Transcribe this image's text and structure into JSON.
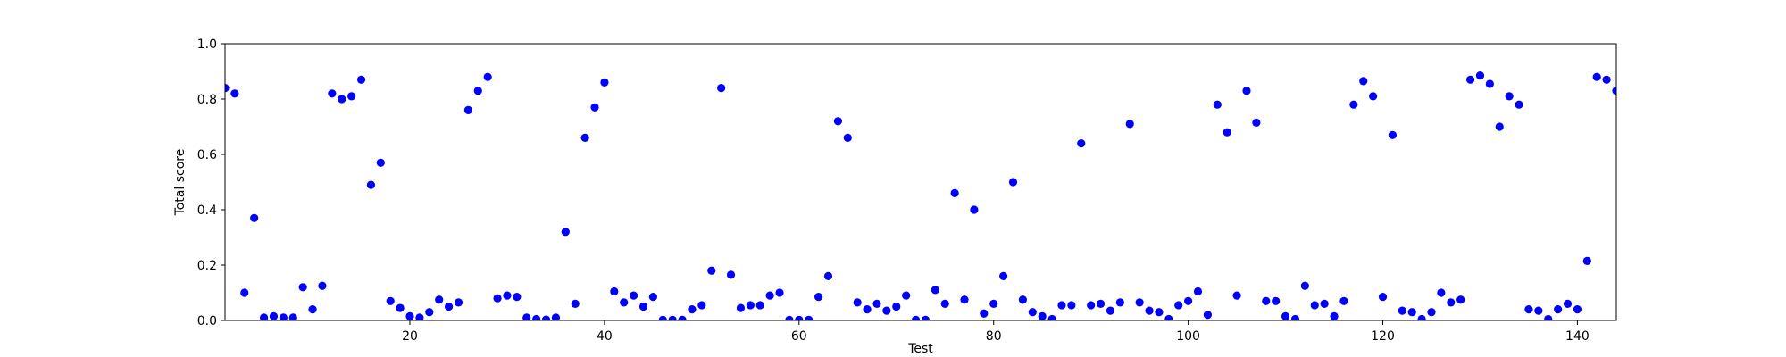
{
  "chart_data": {
    "type": "scatter",
    "title": "",
    "xlabel": "Test",
    "ylabel": "Total score",
    "xlim": [
      1,
      144
    ],
    "ylim": [
      0,
      1.0
    ],
    "xticks": [
      20,
      40,
      60,
      80,
      100,
      120,
      140
    ],
    "xtick_labels": [
      "20",
      "40",
      "60",
      "80",
      "100",
      "120",
      "140"
    ],
    "yticks": [
      0.0,
      0.2,
      0.4,
      0.6,
      0.8,
      1.0
    ],
    "ytick_labels": [
      "0.0",
      "0.2",
      "0.4",
      "0.6",
      "0.8",
      "1.0"
    ],
    "grid": false,
    "legend": "none",
    "marker_color": "#0000ff",
    "series": [
      {
        "x": [
          1,
          2,
          3,
          4,
          5,
          6,
          7,
          8,
          9,
          10,
          11,
          12,
          13,
          14,
          15,
          16,
          17,
          18,
          19,
          20,
          21,
          22,
          23,
          24,
          25,
          26,
          27,
          28,
          29,
          30,
          31,
          32,
          33,
          34,
          35,
          36,
          37,
          38,
          39,
          40,
          41,
          42,
          43,
          44,
          45,
          46,
          47,
          48,
          49,
          50,
          51,
          52,
          53,
          54,
          55,
          56,
          57,
          58,
          59,
          60,
          61,
          62,
          63,
          64,
          65,
          66,
          67,
          68,
          69,
          70,
          71,
          72,
          73,
          74,
          75,
          76,
          77,
          78,
          79,
          80,
          81,
          82,
          83,
          84,
          85,
          86,
          87,
          88,
          89,
          90,
          91,
          92,
          93,
          94,
          95,
          96,
          97,
          98,
          99,
          100,
          101,
          102,
          103,
          104,
          105,
          106,
          107,
          108,
          109,
          110,
          111,
          112,
          113,
          114,
          115,
          116,
          117,
          118,
          119,
          120,
          121,
          122,
          123,
          124,
          125,
          126,
          127,
          128,
          129,
          130,
          131,
          132,
          133,
          134,
          135,
          136,
          137,
          138,
          139,
          140,
          141,
          142,
          143,
          144
        ],
        "y": [
          0.84,
          0.82,
          0.1,
          0.37,
          0.01,
          0.015,
          0.01,
          0.01,
          0.12,
          0.04,
          0.125,
          0.82,
          0.8,
          0.81,
          0.87,
          0.49,
          0.57,
          0.07,
          0.045,
          0.015,
          0.01,
          0.03,
          0.075,
          0.05,
          0.065,
          0.76,
          0.83,
          0.88,
          0.08,
          0.09,
          0.085,
          0.01,
          0.005,
          0.003,
          0.01,
          0.32,
          0.06,
          0.66,
          0.77,
          0.86,
          0.105,
          0.065,
          0.09,
          0.05,
          0.085,
          0.002,
          0.002,
          0.002,
          0.04,
          0.055,
          0.18,
          0.84,
          0.165,
          0.045,
          0.055,
          0.055,
          0.09,
          0.1,
          0.002,
          0.002,
          0.002,
          0.085,
          0.16,
          0.72,
          0.66,
          0.065,
          0.04,
          0.06,
          0.035,
          0.05,
          0.09,
          0.002,
          0.002,
          0.11,
          0.06,
          0.46,
          0.075,
          0.4,
          0.025,
          0.06,
          0.16,
          0.5,
          0.075,
          0.03,
          0.015,
          0.005,
          0.055,
          0.055,
          0.64,
          0.055,
          0.06,
          0.035,
          0.065,
          0.71,
          0.065,
          0.035,
          0.03,
          0.005,
          0.055,
          0.07,
          0.105,
          0.02,
          0.78,
          0.68,
          0.09,
          0.83,
          0.715,
          0.07,
          0.07,
          0.015,
          0.005,
          0.125,
          0.055,
          0.06,
          0.015,
          0.07,
          0.78,
          0.865,
          0.81,
          0.085,
          0.67,
          0.035,
          0.03,
          0.005,
          0.03,
          0.1,
          0.065,
          0.075,
          0.87,
          0.885,
          0.855,
          0.7,
          0.81,
          0.78,
          0.04,
          0.035,
          0.005,
          0.04,
          0.06,
          0.04,
          0.215,
          0.88,
          0.87,
          0.83
        ]
      }
    ]
  }
}
